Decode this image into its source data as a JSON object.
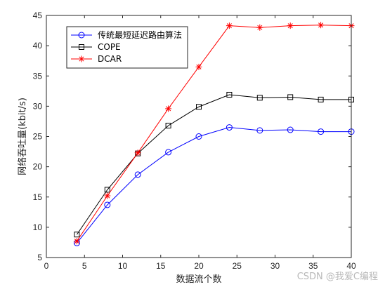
{
  "chart_data": {
    "type": "line",
    "x": [
      4,
      8,
      12,
      16,
      20,
      24,
      28,
      32,
      36,
      40
    ],
    "xlim": [
      0,
      40
    ],
    "ylim": [
      5,
      45
    ],
    "xticks": [
      0,
      5,
      10,
      15,
      20,
      25,
      30,
      35,
      40
    ],
    "yticks": [
      5,
      10,
      15,
      20,
      25,
      30,
      35,
      40,
      45
    ],
    "xlabel": "数据流个数",
    "ylabel": "网络吞吐量(kbit/s)",
    "grid": false,
    "legend_position": "top-left",
    "series": [
      {
        "name": "传统最短延迟路由算法",
        "color": "#0000ff",
        "marker": "circle",
        "values": [
          7.4,
          13.7,
          18.7,
          22.4,
          25.0,
          26.5,
          26.0,
          26.1,
          25.8,
          25.8
        ]
      },
      {
        "name": "COPE",
        "color": "#000000",
        "marker": "square",
        "values": [
          8.8,
          16.2,
          22.2,
          26.8,
          29.9,
          31.9,
          31.4,
          31.5,
          31.1,
          31.1
        ]
      },
      {
        "name": "DCAR",
        "color": "#ff0000",
        "marker": "star",
        "values": [
          7.7,
          15.2,
          22.3,
          29.6,
          36.5,
          43.3,
          43.0,
          43.3,
          43.4,
          43.3
        ]
      }
    ]
  },
  "watermark": "CSDN @我爱C编程"
}
